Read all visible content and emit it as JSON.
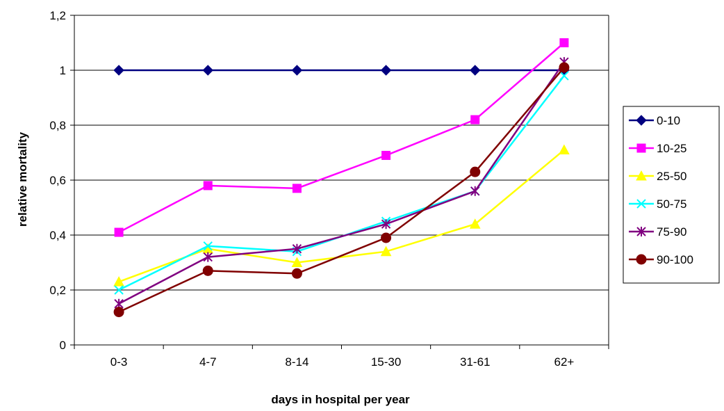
{
  "chart_data": {
    "type": "line",
    "title": "",
    "xlabel": "days in hospital per year",
    "ylabel": "relative mortality",
    "categories": [
      "0-3",
      "4-7",
      "8-14",
      "15-30",
      "31-61",
      "62+"
    ],
    "ylim": [
      0,
      1.2
    ],
    "yticks": [
      0,
      0.2,
      0.4,
      0.6,
      0.8,
      1,
      1.2
    ],
    "ytick_labels": [
      "0",
      "0,2",
      "0,4",
      "0,6",
      "0,8",
      "1",
      "1,2"
    ],
    "grid": "horizontal",
    "legend_position": "right",
    "series": [
      {
        "name": "0-10",
        "color": "#000080",
        "marker": "diamond",
        "values": [
          1,
          1,
          1,
          1,
          1,
          1
        ]
      },
      {
        "name": "10-25",
        "color": "#FF00FF",
        "marker": "square",
        "values": [
          0.41,
          0.58,
          0.57,
          0.69,
          0.82,
          1.1
        ]
      },
      {
        "name": "25-50",
        "color": "#FFFF00",
        "marker": "triangle",
        "values": [
          0.23,
          0.35,
          0.3,
          0.34,
          0.44,
          0.71
        ]
      },
      {
        "name": "50-75",
        "color": "#00FFFF",
        "marker": "x",
        "values": [
          0.2,
          0.36,
          0.34,
          0.45,
          0.56,
          0.98
        ]
      },
      {
        "name": "75-90",
        "color": "#800080",
        "marker": "star",
        "values": [
          0.15,
          0.32,
          0.35,
          0.44,
          0.56,
          1.03
        ]
      },
      {
        "name": "90-100",
        "color": "#800000",
        "marker": "circle",
        "values": [
          0.12,
          0.27,
          0.26,
          0.39,
          0.63,
          1.01
        ]
      }
    ]
  }
}
